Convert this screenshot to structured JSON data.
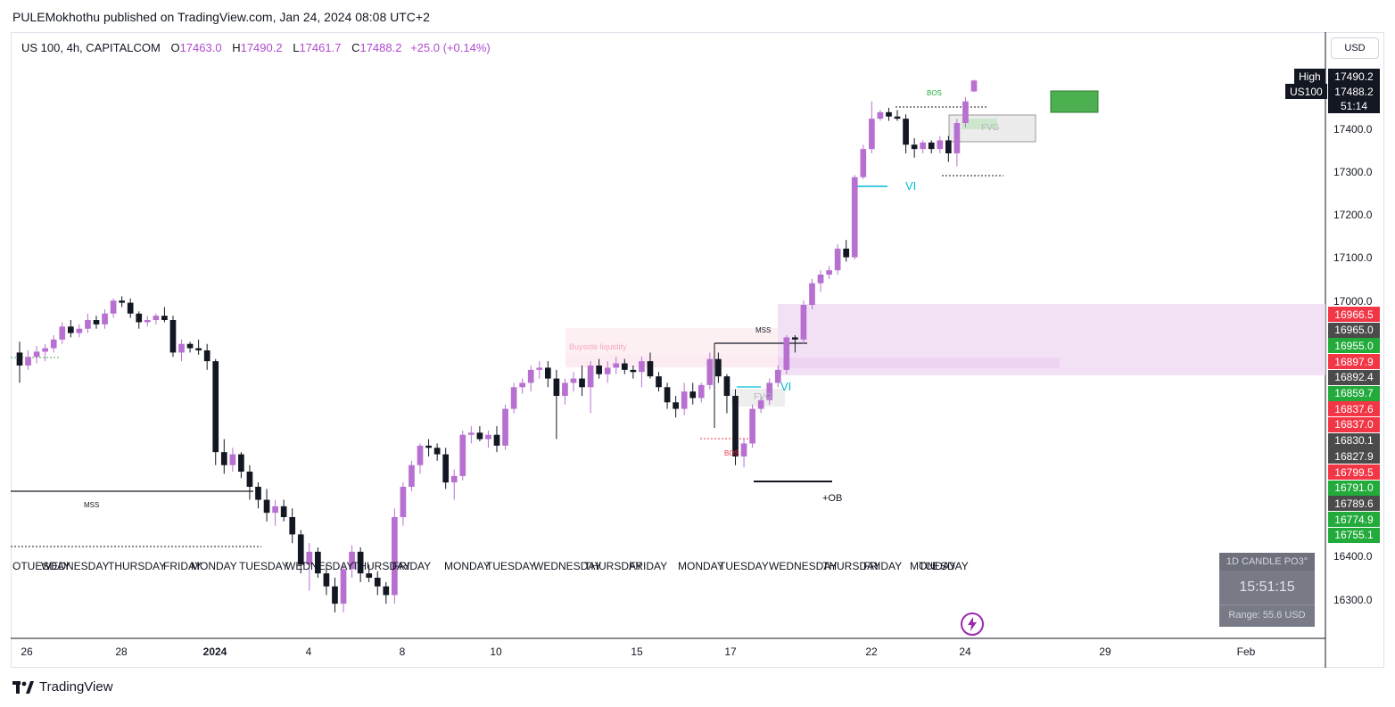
{
  "header": {
    "publisher_text": "PULEMokhothu published on TradingView.com, Jan 24, 2024 08:08 UTC+2"
  },
  "legend": {
    "symbol": "US 100, 4h, CAPITALCOM",
    "open_label": "O",
    "open": "17463.0",
    "high_label": "H",
    "high": "17490.2",
    "low_label": "L",
    "low": "17461.7",
    "close_label": "C",
    "close": "17488.2",
    "change": "+25.0 (+0.14%)"
  },
  "currency_button": "USD",
  "price_tags": {
    "high_label": "High",
    "high_value": "17490.2",
    "symbol_label": "US100",
    "last_value": "17488.2",
    "countdown": "51:14",
    "levels": [
      {
        "value": "16966.5",
        "color": "red"
      },
      {
        "value": "16965.0",
        "color": "gray"
      },
      {
        "value": "16955.0",
        "color": "green"
      },
      {
        "value": "16897.9",
        "color": "red"
      },
      {
        "value": "16892.4",
        "color": "gray"
      },
      {
        "value": "16859.7",
        "color": "green"
      },
      {
        "value": "16837.6",
        "color": "red"
      },
      {
        "value": "16837.0",
        "color": "red"
      },
      {
        "value": "16830.1",
        "color": "gray"
      },
      {
        "value": "16827.9",
        "color": "gray"
      },
      {
        "value": "16799.5",
        "color": "red"
      },
      {
        "value": "16791.0",
        "color": "green"
      },
      {
        "value": "16789.6",
        "color": "gray"
      },
      {
        "value": "16774.9",
        "color": "green"
      },
      {
        "value": "16755.1",
        "color": "green"
      }
    ]
  },
  "y_axis_labels": [
    "17400.0",
    "17300.0",
    "17200.0",
    "17100.0",
    "17000.0",
    "16400.0",
    "16300.0"
  ],
  "x_axis_labels": [
    {
      "text": "26",
      "bold": false
    },
    {
      "text": "28",
      "bold": false
    },
    {
      "text": "2024",
      "bold": true
    },
    {
      "text": "4",
      "bold": false
    },
    {
      "text": "8",
      "bold": false
    },
    {
      "text": "10",
      "bold": false
    },
    {
      "text": "15",
      "bold": false
    },
    {
      "text": "17",
      "bold": false
    },
    {
      "text": "22",
      "bold": false
    },
    {
      "text": "24",
      "bold": false
    },
    {
      "text": "29",
      "bold": false
    },
    {
      "text": "Feb",
      "bold": false
    }
  ],
  "day_labels": [
    "OTUESDAY",
    "WEDNESDAY",
    "THURSDAY",
    "FRIDAY",
    "MONDAY",
    "TUESDAY",
    "WEDNESDAY",
    "THURSDAY",
    "FRIDAY",
    "MONDAY",
    "TUESDAY",
    "WEDNESDAY",
    "THURSDAY",
    "FRIDAY",
    "MONDAY",
    "TUESDAY",
    "WEDNESDAY",
    "THURSDAY",
    "FRIDAY",
    "MONDAY",
    "TUESDAY"
  ],
  "annotations": {
    "mss_left": "MSS",
    "mss_mid": "MSS",
    "bos_bottom": "BOS",
    "bos_top": "BOS",
    "buyside": "Buyside liquidity",
    "fvg_mid": "FVG",
    "fvg_top": "FVG",
    "vi_mid": "VI",
    "vi_top": "VI",
    "ob": "+OB"
  },
  "widget": {
    "title": "1D CANDLE PO3°",
    "timer": "15:51:15",
    "range": "Range: 55.6 USD"
  },
  "footer": {
    "brand": "TradingView"
  },
  "colors": {
    "bull": "#b870d0",
    "bear": "#131722",
    "accent": "#b04bd0",
    "zone": "#f0dcf3"
  },
  "chart_data": {
    "type": "candlestick",
    "symbol": "US 100",
    "interval": "4h",
    "x_axis": [
      "Dec 26",
      "Dec 28",
      "2024",
      "Jan 4",
      "Jan 8",
      "Jan 10",
      "Jan 15",
      "Jan 17",
      "Jan 22",
      "Jan 24",
      "Jan 29",
      "Feb"
    ],
    "ylim": [
      16200,
      17600
    ],
    "series": [
      {
        "name": "US100",
        "values": [
          [
            16860,
            16885,
            16790,
            16830
          ],
          [
            16830,
            16865,
            16820,
            16850
          ],
          [
            16850,
            16875,
            16835,
            16862
          ],
          [
            16862,
            16880,
            16840,
            16870
          ],
          [
            16870,
            16900,
            16860,
            16890
          ],
          [
            16890,
            16930,
            16880,
            16920
          ],
          [
            16920,
            16935,
            16895,
            16905
          ],
          [
            16905,
            16925,
            16895,
            16915
          ],
          [
            16915,
            16950,
            16905,
            16935
          ],
          [
            16935,
            16945,
            16915,
            16925
          ],
          [
            16925,
            16960,
            16915,
            16950
          ],
          [
            16950,
            16985,
            16940,
            16980
          ],
          [
            16980,
            16990,
            16965,
            16975
          ],
          [
            16975,
            16985,
            16940,
            16950
          ],
          [
            16950,
            16955,
            16915,
            16930
          ],
          [
            16930,
            16945,
            16920,
            16935
          ],
          [
            16935,
            16950,
            16925,
            16945
          ],
          [
            16945,
            16965,
            16930,
            16935
          ],
          [
            16935,
            16945,
            16850,
            16860
          ],
          [
            16860,
            16890,
            16840,
            16880
          ],
          [
            16880,
            16885,
            16860,
            16870
          ],
          [
            16870,
            16890,
            16855,
            16865
          ],
          [
            16865,
            16880,
            16820,
            16840
          ],
          [
            16840,
            16845,
            16600,
            16630
          ],
          [
            16630,
            16660,
            16580,
            16600
          ],
          [
            16600,
            16640,
            16585,
            16625
          ],
          [
            16625,
            16630,
            16570,
            16585
          ],
          [
            16585,
            16600,
            16520,
            16550
          ],
          [
            16550,
            16560,
            16500,
            16520
          ],
          [
            16520,
            16545,
            16470,
            16490
          ],
          [
            16490,
            16520,
            16460,
            16505
          ],
          [
            16505,
            16520,
            16470,
            16480
          ],
          [
            16480,
            16500,
            16420,
            16440
          ],
          [
            16440,
            16450,
            16350,
            16370
          ],
          [
            16370,
            16420,
            16310,
            16400
          ],
          [
            16400,
            16410,
            16340,
            16350
          ],
          [
            16350,
            16370,
            16300,
            16320
          ],
          [
            16320,
            16340,
            16260,
            16280
          ],
          [
            16280,
            16370,
            16260,
            16360
          ],
          [
            16360,
            16415,
            16340,
            16400
          ],
          [
            16400,
            16410,
            16330,
            16350
          ],
          [
            16350,
            16370,
            16330,
            16340
          ],
          [
            16340,
            16355,
            16300,
            16320
          ],
          [
            16320,
            16330,
            16280,
            16300
          ],
          [
            16300,
            16500,
            16280,
            16480
          ],
          [
            16480,
            16560,
            16460,
            16550
          ],
          [
            16550,
            16610,
            16540,
            16600
          ],
          [
            16600,
            16650,
            16580,
            16645
          ],
          [
            16645,
            16660,
            16620,
            16640
          ],
          [
            16640,
            16650,
            16610,
            16625
          ],
          [
            16625,
            16640,
            16545,
            16560
          ],
          [
            16560,
            16590,
            16520,
            16575
          ],
          [
            16575,
            16680,
            16565,
            16670
          ],
          [
            16670,
            16690,
            16650,
            16675
          ],
          [
            16675,
            16690,
            16655,
            16660
          ],
          [
            16660,
            16680,
            16640,
            16670
          ],
          [
            16670,
            16690,
            16630,
            16645
          ],
          [
            16645,
            16740,
            16635,
            16730
          ],
          [
            16730,
            16790,
            16720,
            16780
          ],
          [
            16780,
            16800,
            16765,
            16790
          ],
          [
            16790,
            16830,
            16770,
            16820
          ],
          [
            16820,
            16840,
            16800,
            16825
          ],
          [
            16825,
            16840,
            16780,
            16800
          ],
          [
            16800,
            16820,
            16660,
            16760
          ],
          [
            16760,
            16800,
            16740,
            16790
          ],
          [
            16790,
            16815,
            16770,
            16800
          ],
          [
            16800,
            16830,
            16760,
            16780
          ],
          [
            16780,
            16840,
            16720,
            16830
          ],
          [
            16830,
            16845,
            16800,
            16810
          ],
          [
            16810,
            16840,
            16790,
            16825
          ],
          [
            16825,
            16850,
            16810,
            16835
          ],
          [
            16835,
            16845,
            16810,
            16820
          ],
          [
            16820,
            16830,
            16800,
            16815
          ],
          [
            16815,
            16850,
            16780,
            16840
          ],
          [
            16840,
            16860,
            16800,
            16805
          ],
          [
            16805,
            16815,
            16770,
            16780
          ],
          [
            16780,
            16790,
            16730,
            16745
          ],
          [
            16745,
            16760,
            16710,
            16730
          ],
          [
            16730,
            16790,
            16715,
            16770
          ],
          [
            16770,
            16790,
            16740,
            16755
          ],
          [
            16755,
            16790,
            16745,
            16785
          ],
          [
            16785,
            16860,
            16775,
            16845
          ],
          [
            16845,
            16860,
            16790,
            16805
          ],
          [
            16805,
            16810,
            16720,
            16760
          ],
          [
            16760,
            16775,
            16600,
            16620
          ],
          [
            16620,
            16660,
            16595,
            16650
          ],
          [
            16650,
            16740,
            16640,
            16730
          ],
          [
            16730,
            16760,
            16720,
            16750
          ],
          [
            16750,
            16800,
            16740,
            16790
          ],
          [
            16790,
            16830,
            16780,
            16820
          ],
          [
            16820,
            16900,
            16810,
            16895
          ],
          [
            16895,
            16900,
            16860,
            16890
          ],
          [
            16890,
            16980,
            16880,
            16970
          ],
          [
            16970,
            17030,
            16960,
            17020
          ],
          [
            17020,
            17050,
            17000,
            17040
          ],
          [
            17040,
            17060,
            17030,
            17050
          ],
          [
            17050,
            17110,
            17040,
            17100
          ],
          [
            17100,
            17120,
            17070,
            17080
          ],
          [
            17080,
            17270,
            17075,
            17265
          ],
          [
            17265,
            17340,
            17260,
            17330
          ],
          [
            17330,
            17440,
            17320,
            17400
          ],
          [
            17400,
            17420,
            17395,
            17415
          ],
          [
            17415,
            17425,
            17395,
            17405
          ],
          [
            17405,
            17420,
            17395,
            17400
          ],
          [
            17400,
            17410,
            17320,
            17340
          ],
          [
            17340,
            17355,
            17310,
            17330
          ],
          [
            17330,
            17350,
            17320,
            17345
          ],
          [
            17345,
            17350,
            17320,
            17330
          ],
          [
            17330,
            17360,
            17320,
            17350
          ],
          [
            17350,
            17360,
            17300,
            17320
          ],
          [
            17320,
            17400,
            17290,
            17390
          ],
          [
            17390,
            17450,
            17380,
            17440
          ],
          [
            17463,
            17490.2,
            17461.7,
            17488.2
          ]
        ]
      }
    ],
    "zones": [
      {
        "name": "premium-zone",
        "from": 16830,
        "to": 16995
      },
      {
        "name": "target-box",
        "from": 17440,
        "to": 17490
      }
    ]
  }
}
